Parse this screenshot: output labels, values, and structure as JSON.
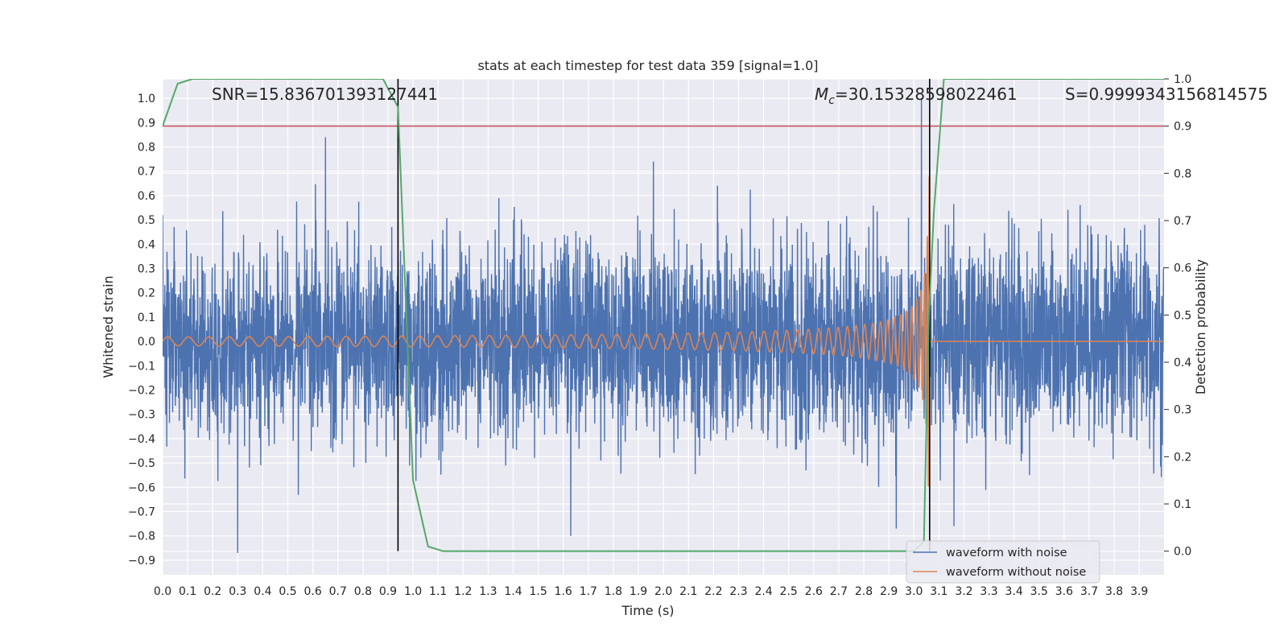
{
  "chart_data": {
    "type": "line",
    "title": "stats at each timestep for test data 359 [signal=1.0]",
    "xlabel": "Time (s)",
    "ylabel": "Whitened strain",
    "ylabel_right": "Detection probability",
    "xlim": [
      0.0,
      3.999
    ],
    "ylim": [
      -0.96,
      1.08
    ],
    "ylim_right": [
      -0.05,
      1.0
    ],
    "x_ticks": [
      0.0,
      0.1,
      0.2,
      0.3,
      0.4,
      0.5,
      0.6,
      0.7,
      0.8,
      0.9,
      1.0,
      1.1,
      1.2,
      1.3,
      1.4,
      1.5,
      1.6,
      1.7,
      1.8,
      1.9,
      2.0,
      2.1,
      2.2,
      2.3,
      2.4,
      2.5,
      2.6,
      2.7,
      2.8,
      2.9,
      3.0,
      3.1,
      3.2,
      3.3,
      3.4,
      3.5,
      3.6,
      3.7,
      3.8,
      3.9
    ],
    "x_tick_labels": [
      "0.0",
      "0.1",
      "0.2",
      "0.3",
      "0.4",
      "0.5",
      "0.6",
      "0.7",
      "0.8",
      "0.9",
      "1.0",
      "1.1",
      "1.2",
      "1.3",
      "1.4",
      "1.5",
      "1.6",
      "1.7",
      "1.8",
      "1.9",
      "2.0",
      "2.1",
      "2.2",
      "2.3",
      "2.4",
      "2.5",
      "2.6",
      "2.7",
      "2.8",
      "2.9",
      "3.0",
      "3.1",
      "3.2",
      "3.3",
      "3.4",
      "3.5",
      "3.6",
      "3.7",
      "3.8",
      "3.9"
    ],
    "y_ticks": [
      1.0,
      0.9,
      0.8,
      0.7,
      0.6,
      0.5,
      0.4,
      0.3,
      0.2,
      0.1,
      0.0,
      -0.1,
      -0.2,
      -0.3,
      -0.4,
      -0.5,
      -0.6,
      -0.7,
      -0.8,
      -0.9
    ],
    "y_tick_labels": [
      "1.0",
      "0.9",
      "0.8",
      "0.7",
      "0.6",
      "0.5",
      "0.4",
      "0.3",
      "0.2",
      "0.1",
      "0.0",
      "−0.1",
      "−0.2",
      "−0.3",
      "−0.4",
      "−0.5",
      "−0.6",
      "−0.7",
      "−0.8",
      "−0.9"
    ],
    "y_right_ticks": [
      1.0,
      0.9,
      0.8,
      0.7,
      0.6,
      0.5,
      0.4,
      0.3,
      0.2,
      0.1,
      0.0
    ],
    "y_right_tick_labels": [
      "1.0",
      "0.9",
      "0.8",
      "0.7",
      "0.6",
      "0.5",
      "0.4",
      "0.3",
      "0.2",
      "0.1",
      "0.0"
    ],
    "grid": true,
    "legend_position": "lower-right",
    "series": [
      {
        "name": "waveform with noise",
        "color": "#4c72b0",
        "description_kind": "noise",
        "sample_rate": 1024,
        "amplitude_std": 0.2,
        "spikes": [
          [
            0.3,
            -0.87
          ],
          [
            0.65,
            0.84
          ],
          [
            1.63,
            -0.8
          ],
          [
            1.96,
            0.74
          ],
          [
            3.03,
            1.0
          ],
          [
            2.93,
            -0.77
          ],
          [
            3.16,
            -0.76
          ],
          [
            0.0,
            0.52
          ]
        ]
      },
      {
        "name": "waveform without noise",
        "color": "#dd8452",
        "kind": "chirp",
        "x_end": 3.063,
        "f_start": 12,
        "amplitude_start": 0.018,
        "amplitude_peak": 0.83
      },
      {
        "name": "",
        "color": "#55a868",
        "axis": "right",
        "x": [
          0.0,
          0.06,
          0.12,
          0.18,
          0.24,
          0.3,
          0.36,
          0.42,
          0.48,
          0.54,
          0.6,
          0.66,
          0.72,
          0.78,
          0.84,
          0.88,
          0.94,
          1.0,
          1.06,
          1.12,
          1.18,
          1.5,
          2.0,
          2.5,
          2.9,
          3.0,
          3.04,
          3.06,
          3.08,
          3.12,
          3.2,
          3.5,
          3.9,
          3.999
        ],
        "y": [
          0.9,
          0.99,
          1.0,
          1.0,
          1.0,
          1.0,
          1.0,
          1.0,
          1.0,
          1.0,
          1.0,
          1.0,
          1.0,
          1.0,
          1.0,
          1.0,
          0.94,
          0.15,
          0.01,
          0.0,
          0.0,
          0.0,
          0.0,
          0.0,
          0.0,
          0.0,
          0.02,
          0.5,
          0.72,
          1.0,
          1.0,
          1.0,
          1.0,
          1.0
        ]
      }
    ],
    "threshold": {
      "axis": "right",
      "value": 0.9,
      "color": "#c44e52"
    },
    "vertical_markers": [
      0.94,
      3.063
    ],
    "annotations": {
      "snr": "SNR=15.836701393127441",
      "mc_prefix": "M",
      "mc_sub": "c",
      "mc_value": "=30.15328598022461",
      "s": "S=0.9999343156814575"
    }
  }
}
